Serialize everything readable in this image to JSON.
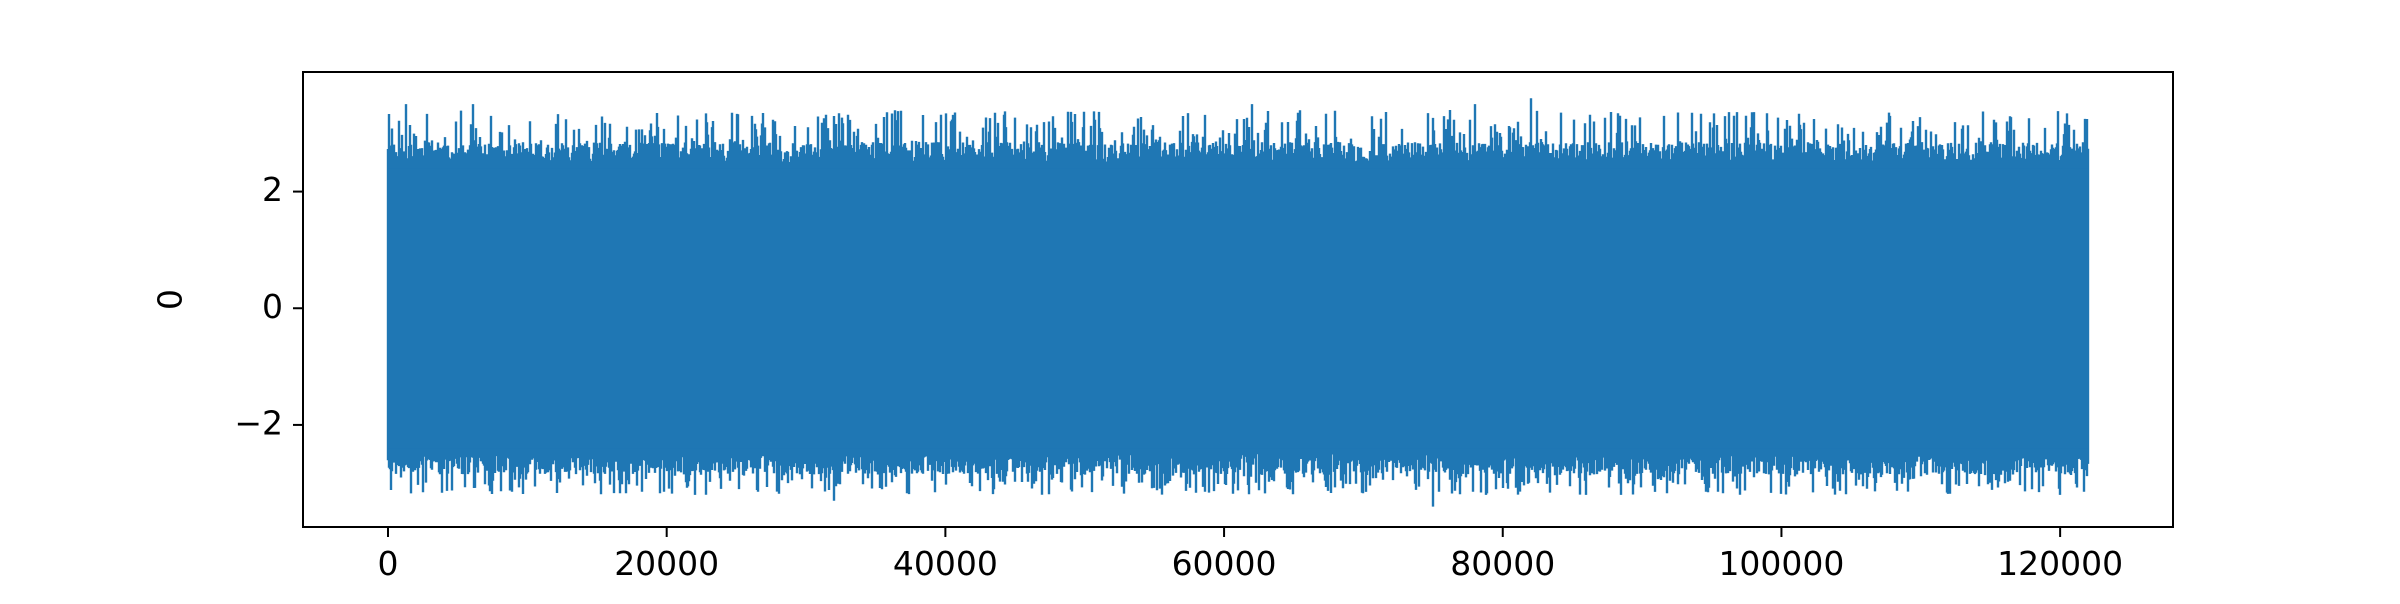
{
  "chart_data": {
    "type": "line",
    "title": "",
    "xlabel": "",
    "ylabel": "0",
    "xlim": [
      -6100,
      128100
    ],
    "ylim": [
      -3.75,
      4.05
    ],
    "x_ticks": [
      0,
      20000,
      40000,
      60000,
      80000,
      100000,
      120000
    ],
    "x_tick_labels": [
      "0",
      "20000",
      "40000",
      "60000",
      "80000",
      "100000",
      "120000"
    ],
    "y_ticks": [
      -2,
      0,
      2
    ],
    "y_tick_labels": [
      "−2",
      "0",
      "2"
    ],
    "grid": false,
    "legend": "none",
    "series": [
      {
        "color": "#1f77b4",
        "x_range": [
          0,
          122000
        ],
        "n_points": 122000,
        "description": "dense zero-mean noisy signal",
        "core_envelope": [
          -2.5,
          2.5
        ],
        "spike_range": [
          -3.4,
          3.6
        ],
        "notable_peaks": [
          {
            "x": 1300,
            "y": 3.5
          },
          {
            "x": 6100,
            "y": 3.5
          },
          {
            "x": 62000,
            "y": 3.5
          },
          {
            "x": 78000,
            "y": 3.5
          },
          {
            "x": 82000,
            "y": 3.6
          }
        ],
        "notable_troughs": [
          {
            "x": 32000,
            "y": -3.3
          },
          {
            "x": 75000,
            "y": -3.4
          },
          {
            "x": 86000,
            "y": -3.2
          },
          {
            "x": 120000,
            "y": -3.2
          }
        ]
      }
    ]
  }
}
